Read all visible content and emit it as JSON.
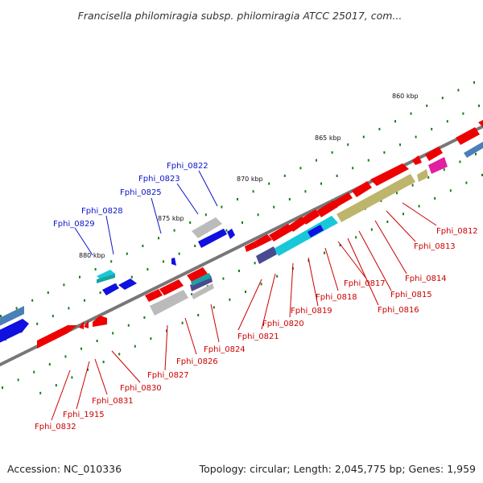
{
  "title": "Francisella philomiragia subsp. philomiragia ATCC 25017, com...",
  "footer": {
    "accession": "Accession: NC_010336",
    "summary": "Topology: circular; Length: 2,045,775 bp; Genes: 1,959"
  },
  "scale_labels": [
    "860 kbp",
    "865 kbp",
    "870 kbp",
    "875 kbp",
    "880 kbp"
  ],
  "colors": {
    "forward_label": "#0a14c8",
    "reverse_label": "#cc0000",
    "backbone": "#777777",
    "tick": "#1a7a1a",
    "cds_red": "#ee0000",
    "cds_blue": "#1010e0",
    "cyan": "#18c8d8",
    "olive": "#bdb56c",
    "gray": "#bbbbbb",
    "steelblue": "#4a7fb8",
    "navy": "#4a4a90",
    "magenta": "#e020a0",
    "teal": "#1aa3a3"
  },
  "forward_genes": [
    "Fphi_0822",
    "Fphi_0823",
    "Fphi_0825",
    "Fphi_0828",
    "Fphi_0829"
  ],
  "reverse_genes": [
    "Fphi_0812",
    "Fphi_0813",
    "Fphi_0814",
    "Fphi_0815",
    "Fphi_0816",
    "Fphi_0817",
    "Fphi_0818",
    "Fphi_0819",
    "Fphi_0820",
    "Fphi_0821",
    "Fphi_0824",
    "Fphi_0826",
    "Fphi_0827",
    "Fphi_0830",
    "Fphi_0831",
    "Fphi_1915",
    "Fphi_0832"
  ]
}
